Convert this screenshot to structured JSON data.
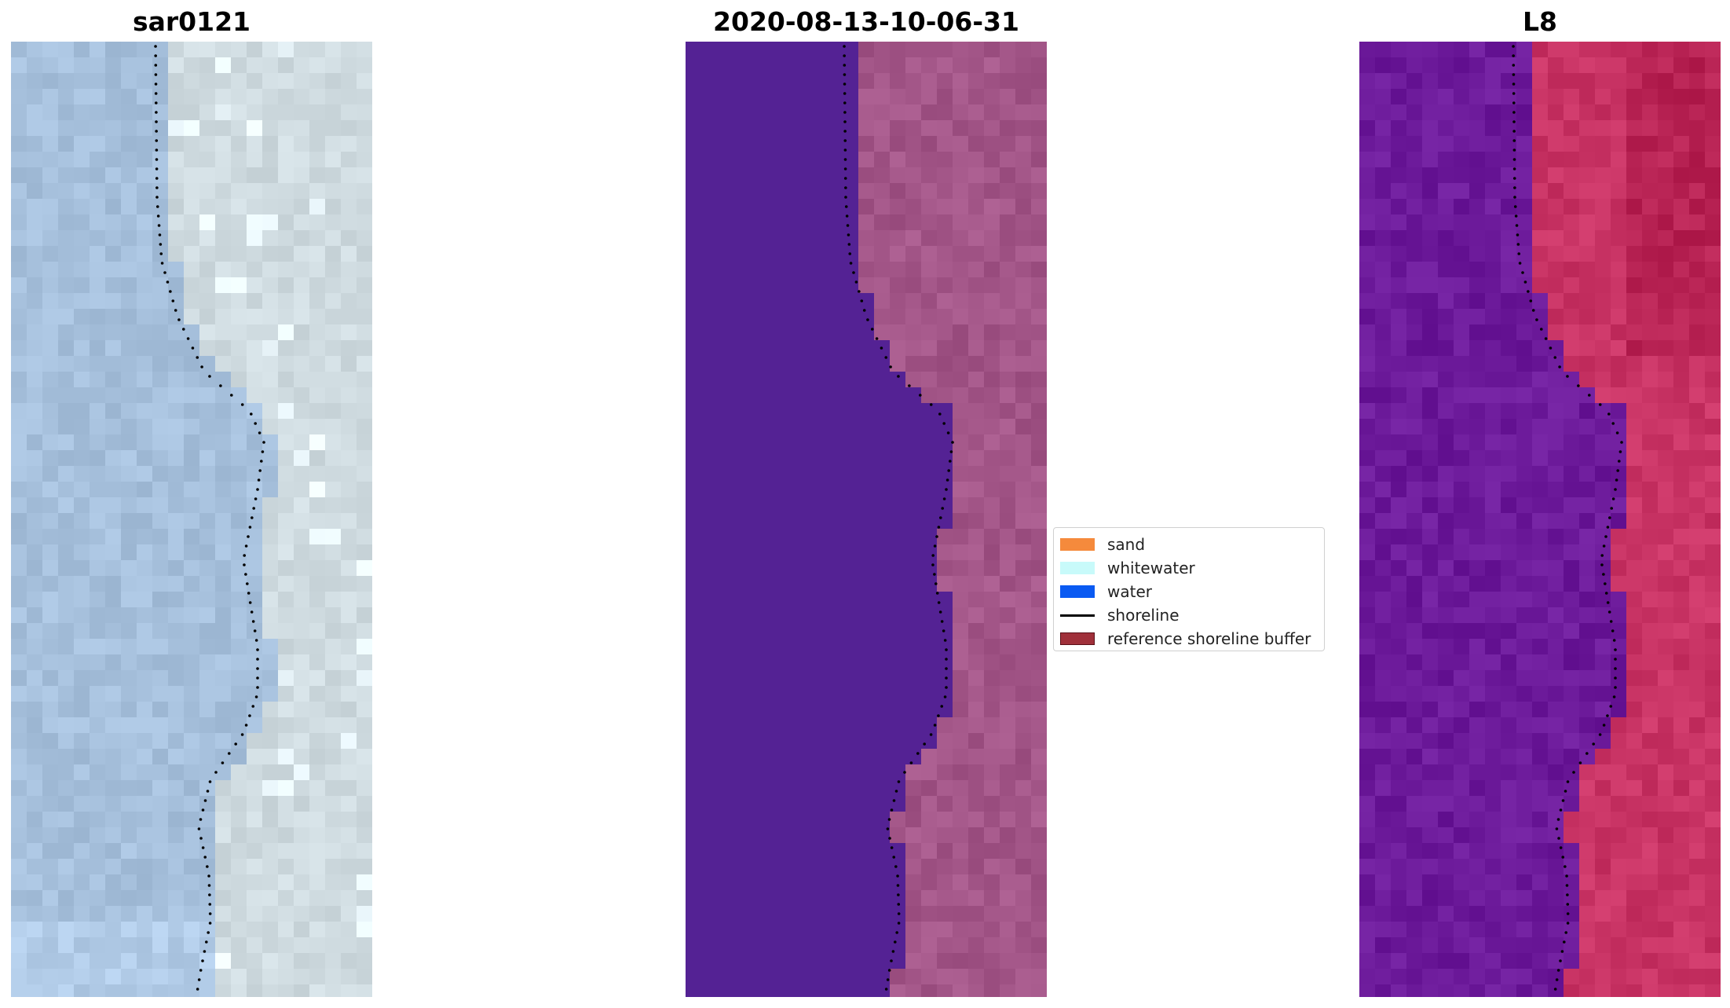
{
  "panels": [
    {
      "id": "rgb",
      "title": "sar0121"
    },
    {
      "id": "classified",
      "title": "2020-08-13-10-06-31"
    },
    {
      "id": "index",
      "title": "L8"
    }
  ],
  "legend": {
    "items": [
      {
        "label": "sand",
        "kind": "patch",
        "color": "#f58a3c",
        "edge": "#f58a3c"
      },
      {
        "label": "whitewater",
        "kind": "patch",
        "color": "#c8fafa",
        "edge": "#c8fafa"
      },
      {
        "label": "water",
        "kind": "patch",
        "color": "#0a5af2",
        "edge": "#0a5af2"
      },
      {
        "label": "shoreline",
        "kind": "line",
        "color": "#000000"
      },
      {
        "label": "reference shoreline buffer",
        "kind": "patch",
        "color": "#a0303a",
        "edge": "#5a1018"
      }
    ]
  },
  "colors": {
    "rgb_water": "#a6c0dc",
    "rgb_sand": "#cfdbe0",
    "classified_water": "#542294",
    "classified_land": "#a35688",
    "index_water": "#6c1a9a",
    "index_land": "#c93465"
  }
}
